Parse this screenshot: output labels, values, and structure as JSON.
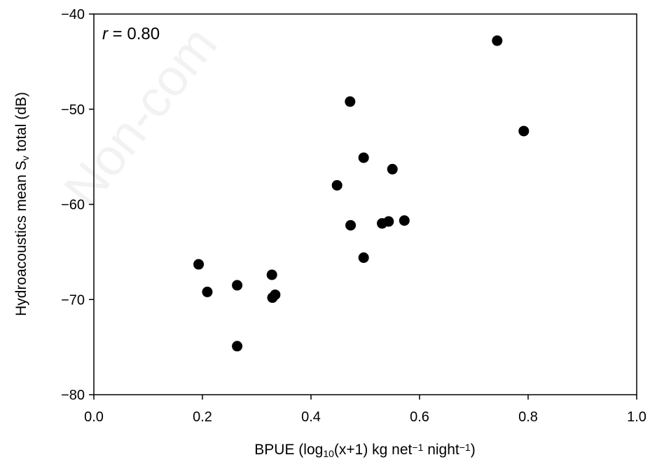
{
  "chart_data": {
    "type": "scatter",
    "title": "",
    "xlabel": "BPUE (log10(x+1) kg net−1 night−1)",
    "ylabel": "Hydroacoustics mean Sv total (dB)",
    "xlabel_parts": [
      {
        "text": "BPUE (log",
        "style": "normal"
      },
      {
        "text": "10",
        "style": "sub"
      },
      {
        "text": "(x+1) kg net",
        "style": "normal"
      },
      {
        "text": "−1",
        "style": "sup"
      },
      {
        "text": " night",
        "style": "normal"
      },
      {
        "text": "−1",
        "style": "sup"
      },
      {
        "text": ")",
        "style": "normal"
      }
    ],
    "ylabel_parts": [
      {
        "text": "Hydroacoustics mean S",
        "style": "normal"
      },
      {
        "text": "v",
        "style": "sub"
      },
      {
        "text": " total (dB)",
        "style": "normal"
      }
    ],
    "xlim": [
      0.0,
      1.0
    ],
    "ylim": [
      -80,
      -40
    ],
    "xticks": [
      0.0,
      0.2,
      0.4,
      0.6,
      0.8,
      1.0
    ],
    "xtick_labels": [
      "0.0",
      "0.2",
      "0.4",
      "0.6",
      "0.8",
      "1.0"
    ],
    "yticks": [
      -80,
      -70,
      -60,
      -50,
      -40
    ],
    "ytick_labels": [
      "−80",
      "−70",
      "−60",
      "−50",
      "−40"
    ],
    "grid": false,
    "legend": "none",
    "marker_color": "#000000",
    "annotation": {
      "italic": "r",
      "text": " = 0.80"
    },
    "watermark": "Non-com",
    "series": [
      {
        "points": [
          {
            "x": 0.193,
            "y": -66.3
          },
          {
            "x": 0.209,
            "y": -69.2
          },
          {
            "x": 0.264,
            "y": -68.5
          },
          {
            "x": 0.264,
            "y": -74.9
          },
          {
            "x": 0.328,
            "y": -67.4
          },
          {
            "x": 0.329,
            "y": -69.8
          },
          {
            "x": 0.334,
            "y": -69.5
          },
          {
            "x": 0.448,
            "y": -58.0
          },
          {
            "x": 0.472,
            "y": -49.2
          },
          {
            "x": 0.473,
            "y": -62.2
          },
          {
            "x": 0.497,
            "y": -55.1
          },
          {
            "x": 0.497,
            "y": -65.6
          },
          {
            "x": 0.531,
            "y": -62.0
          },
          {
            "x": 0.543,
            "y": -61.8
          },
          {
            "x": 0.55,
            "y": -56.3
          },
          {
            "x": 0.572,
            "y": -61.7
          },
          {
            "x": 0.743,
            "y": -42.8
          },
          {
            "x": 0.792,
            "y": -52.3
          }
        ]
      }
    ]
  }
}
